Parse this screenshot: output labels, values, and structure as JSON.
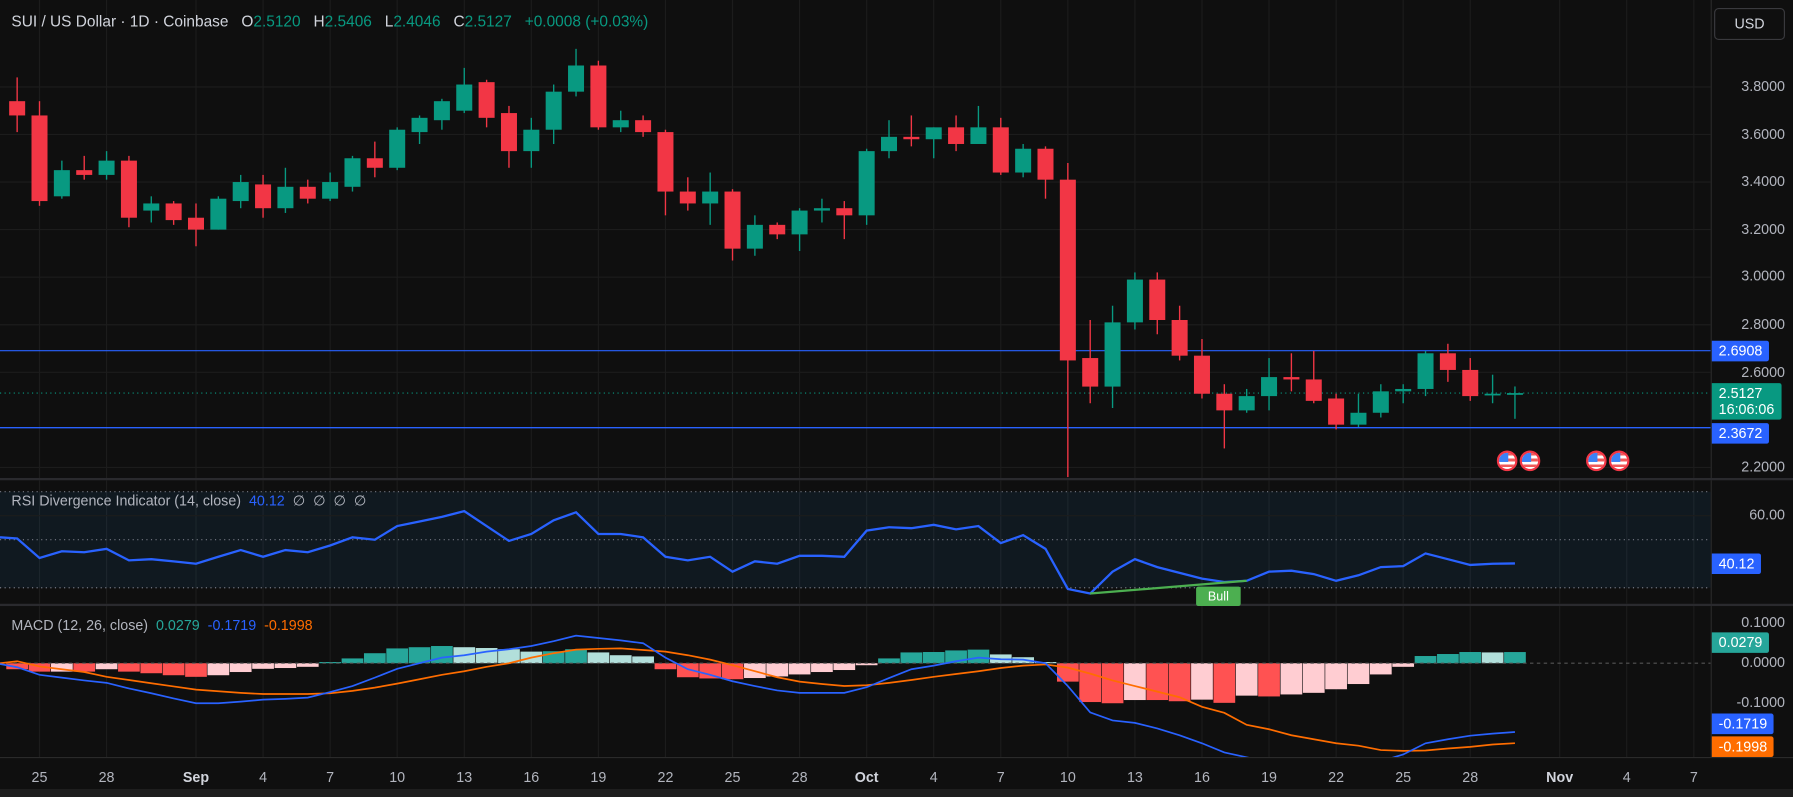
{
  "header": {
    "symbol": "SUI / US Dollar · 1D · Coinbase",
    "o_label": "O",
    "o": "2.5120",
    "h_label": "H",
    "h": "2.5406",
    "l_label": "L",
    "l": "2.4046",
    "c_label": "C",
    "c": "2.5127",
    "change": "+0.0008 (+0.03%)"
  },
  "currency_button": "USD",
  "colors": {
    "up": "#089981",
    "down": "#f23645",
    "rsi": "#2962ff",
    "macd": "#2962ff",
    "signal": "#ff6d00",
    "hist_up": "#26a69a",
    "hist_up_fall": "#b2dfdb",
    "hist_dn": "#ff5252",
    "hist_dn_rise": "#ffcdd2",
    "level": "#2962ff",
    "divergence": "#4caf50"
  },
  "price_axis": {
    "ticks": [
      "3.8000",
      "3.6000",
      "3.4000",
      "3.2000",
      "3.0000",
      "2.8000",
      "2.6000",
      "2.2000"
    ],
    "tick_values": [
      3.8,
      3.6,
      3.4,
      3.2,
      3.0,
      2.8,
      2.6,
      2.2
    ],
    "level_high": "2.6908",
    "level_high_value": 2.6908,
    "level_low": "2.3672",
    "level_low_value": 2.3672,
    "last": "2.5127",
    "last_value": 2.5127,
    "countdown": "16:06:06"
  },
  "chart_data": [
    {
      "type": "candlestick",
      "title": "SUI / US Dollar · 1D · Coinbase",
      "ylim": [
        2.1,
        4.0
      ],
      "open": [
        3.74,
        3.68,
        3.34,
        3.45,
        3.43,
        3.49,
        3.28,
        3.31,
        3.25,
        3.2,
        3.32,
        3.39,
        3.29,
        3.38,
        3.33,
        3.38,
        3.5,
        3.46,
        3.61,
        3.66,
        3.7,
        3.82,
        3.69,
        3.53,
        3.62,
        3.78,
        3.89,
        3.63,
        3.66,
        3.61,
        3.36,
        3.31,
        3.36,
        3.12,
        3.22,
        3.18,
        3.28,
        3.29,
        3.26,
        3.53,
        3.59,
        3.58,
        3.63,
        3.56,
        3.63,
        3.44,
        3.54,
        3.41,
        2.66,
        2.54,
        2.81,
        2.99,
        2.82,
        2.67,
        2.51,
        2.44,
        2.5,
        2.58,
        2.57,
        2.49,
        2.38,
        2.43,
        2.52,
        2.53,
        2.68,
        2.61,
        2.505,
        2.512
      ],
      "high": [
        3.84,
        3.74,
        3.49,
        3.51,
        3.53,
        3.51,
        3.34,
        3.32,
        3.31,
        3.34,
        3.43,
        3.43,
        3.46,
        3.41,
        3.44,
        3.51,
        3.57,
        3.63,
        3.68,
        3.75,
        3.88,
        3.83,
        3.72,
        3.67,
        3.81,
        3.96,
        3.91,
        3.7,
        3.68,
        3.62,
        3.42,
        3.44,
        3.37,
        3.26,
        3.23,
        3.29,
        3.33,
        3.32,
        3.54,
        3.66,
        3.68,
        3.63,
        3.68,
        3.72,
        3.67,
        3.56,
        3.55,
        3.48,
        2.82,
        2.88,
        3.02,
        3.02,
        2.88,
        2.74,
        2.55,
        2.53,
        2.66,
        2.68,
        2.69,
        2.51,
        2.51,
        2.55,
        2.55,
        2.69,
        2.72,
        2.66,
        2.59,
        2.5406
      ],
      "low": [
        3.61,
        3.3,
        3.33,
        3.41,
        3.41,
        3.21,
        3.23,
        3.22,
        3.13,
        3.2,
        3.29,
        3.25,
        3.27,
        3.31,
        3.32,
        3.36,
        3.42,
        3.45,
        3.56,
        3.62,
        3.69,
        3.63,
        3.46,
        3.46,
        3.56,
        3.76,
        3.62,
        3.61,
        3.59,
        3.26,
        3.28,
        3.22,
        3.07,
        3.09,
        3.16,
        3.11,
        3.23,
        3.16,
        3.22,
        3.5,
        3.55,
        3.5,
        3.53,
        3.57,
        3.43,
        3.42,
        3.33,
        2.16,
        2.47,
        2.45,
        2.78,
        2.76,
        2.65,
        2.49,
        2.28,
        2.43,
        2.44,
        2.52,
        2.47,
        2.36,
        2.37,
        2.41,
        2.47,
        2.5,
        2.56,
        2.48,
        2.47,
        2.4046
      ],
      "close": [
        3.68,
        3.32,
        3.45,
        3.43,
        3.49,
        3.25,
        3.31,
        3.24,
        3.2,
        3.33,
        3.4,
        3.29,
        3.38,
        3.33,
        3.4,
        3.5,
        3.46,
        3.62,
        3.67,
        3.74,
        3.81,
        3.67,
        3.53,
        3.62,
        3.78,
        3.89,
        3.63,
        3.66,
        3.61,
        3.36,
        3.31,
        3.36,
        3.12,
        3.22,
        3.18,
        3.28,
        3.29,
        3.26,
        3.53,
        3.59,
        3.58,
        3.63,
        3.56,
        3.63,
        3.44,
        3.54,
        3.41,
        2.65,
        2.54,
        2.81,
        2.99,
        2.82,
        2.67,
        2.51,
        2.44,
        2.5,
        2.58,
        2.57,
        2.48,
        2.38,
        2.43,
        2.52,
        2.53,
        2.68,
        2.61,
        2.5,
        2.51,
        2.5127
      ]
    },
    {
      "type": "line",
      "title": "RSI Divergence Indicator (14, close)",
      "ylim": [
        30,
        70
      ],
      "bands": [
        70,
        50,
        30
      ],
      "values": [
        50.5,
        42.4,
        45.2,
        44.8,
        46.2,
        41.4,
        41.9,
        41.0,
        40.0,
        42.9,
        45.7,
        42.9,
        45.7,
        44.8,
        47.6,
        51.0,
        50.0,
        55.7,
        57.6,
        59.5,
        61.9,
        55.7,
        49.5,
        52.4,
        58.1,
        61.4,
        52.4,
        52.4,
        51.0,
        42.9,
        41.4,
        42.9,
        36.7,
        41.0,
        40.0,
        43.3,
        43.3,
        42.9,
        53.8,
        55.2,
        54.8,
        56.2,
        54.3,
        55.7,
        48.6,
        51.9,
        46.2,
        29.5,
        27.6,
        36.7,
        41.9,
        38.6,
        36.2,
        33.8,
        32.4,
        32.9,
        36.7,
        37.1,
        35.7,
        32.9,
        35.2,
        38.6,
        39.0,
        44.3,
        41.9,
        39.5,
        40.0,
        40.12
      ],
      "divergence": {
        "from_index": 48,
        "to_index": 55,
        "label": "Bull"
      }
    },
    {
      "type": "line",
      "title": "MACD (12, 26, close)",
      "ylim": [
        -0.22,
        0.14
      ],
      "macd": [
        -0.01,
        -0.029,
        -0.036,
        -0.043,
        -0.049,
        -0.063,
        -0.075,
        -0.088,
        -0.1,
        -0.1,
        -0.096,
        -0.091,
        -0.089,
        -0.086,
        -0.072,
        -0.057,
        -0.036,
        -0.014,
        0.0,
        0.014,
        0.02,
        0.029,
        0.035,
        0.043,
        0.055,
        0.069,
        0.063,
        0.057,
        0.05,
        0.014,
        -0.015,
        -0.029,
        -0.045,
        -0.057,
        -0.068,
        -0.074,
        -0.074,
        -0.074,
        -0.06,
        -0.037,
        -0.015,
        -0.006,
        0.005,
        0.014,
        0.01,
        0.009,
        0.0,
        -0.057,
        -0.123,
        -0.143,
        -0.149,
        -0.163,
        -0.18,
        -0.2,
        -0.223,
        -0.235,
        -0.248,
        -0.258,
        -0.264,
        -0.265,
        -0.258,
        -0.245,
        -0.228,
        -0.2,
        -0.19,
        -0.181,
        -0.176,
        -0.1719
      ],
      "signal": [
        0.005,
        -0.008,
        -0.015,
        -0.022,
        -0.034,
        -0.042,
        -0.05,
        -0.058,
        -0.066,
        -0.07,
        -0.074,
        -0.077,
        -0.077,
        -0.077,
        -0.075,
        -0.069,
        -0.061,
        -0.051,
        -0.04,
        -0.029,
        -0.02,
        -0.009,
        0.0,
        0.014,
        0.025,
        0.034,
        0.036,
        0.037,
        0.033,
        0.029,
        0.02,
        0.009,
        -0.005,
        -0.02,
        -0.035,
        -0.046,
        -0.052,
        -0.057,
        -0.055,
        -0.049,
        -0.042,
        -0.034,
        -0.027,
        -0.02,
        -0.012,
        -0.006,
        -0.003,
        -0.011,
        -0.026,
        -0.043,
        -0.057,
        -0.071,
        -0.085,
        -0.109,
        -0.124,
        -0.154,
        -0.165,
        -0.18,
        -0.19,
        -0.2,
        -0.206,
        -0.217,
        -0.219,
        -0.218,
        -0.213,
        -0.209,
        -0.203,
        -0.1998
      ]
    }
  ],
  "rsi": {
    "title": "RSI Divergence Indicator (14, close)",
    "value": "40.12",
    "nulls": [
      "∅",
      "∅",
      "∅",
      "∅"
    ],
    "axis_tick": "60.00",
    "axis_tick_value": 60,
    "tag": "40.12",
    "bull_label": "Bull"
  },
  "macd": {
    "title": "MACD (12, 26, close)",
    "hist": "0.0279",
    "macd": "-0.1719",
    "signal": "-0.1998",
    "ticks": [
      "0.1000",
      "0.0000",
      "-0.1000"
    ],
    "tick_values": [
      0.1,
      0,
      -0.1
    ],
    "tag_hist": "0.0279",
    "tag_macd": "-0.1719",
    "tag_signal": "-0.1998"
  },
  "date_axis": [
    {
      "t": "25",
      "i": 1
    },
    {
      "t": "28",
      "i": 4
    },
    {
      "t": "Sep",
      "i": 8,
      "b": true
    },
    {
      "t": "4",
      "i": 11
    },
    {
      "t": "7",
      "i": 14
    },
    {
      "t": "10",
      "i": 17
    },
    {
      "t": "13",
      "i": 20
    },
    {
      "t": "16",
      "i": 23
    },
    {
      "t": "19",
      "i": 26
    },
    {
      "t": "22",
      "i": 29
    },
    {
      "t": "25",
      "i": 32
    },
    {
      "t": "28",
      "i": 35
    },
    {
      "t": "Oct",
      "i": 38,
      "b": true
    },
    {
      "t": "4",
      "i": 41
    },
    {
      "t": "7",
      "i": 44
    },
    {
      "t": "10",
      "i": 47
    },
    {
      "t": "13",
      "i": 50
    },
    {
      "t": "16",
      "i": 53
    },
    {
      "t": "19",
      "i": 56
    },
    {
      "t": "22",
      "i": 59
    },
    {
      "t": "25",
      "i": 62
    },
    {
      "t": "28",
      "i": 65
    },
    {
      "t": "Nov",
      "i": 69,
      "b": true
    },
    {
      "t": "4",
      "i": 72
    },
    {
      "t": "7",
      "i": 75
    }
  ]
}
